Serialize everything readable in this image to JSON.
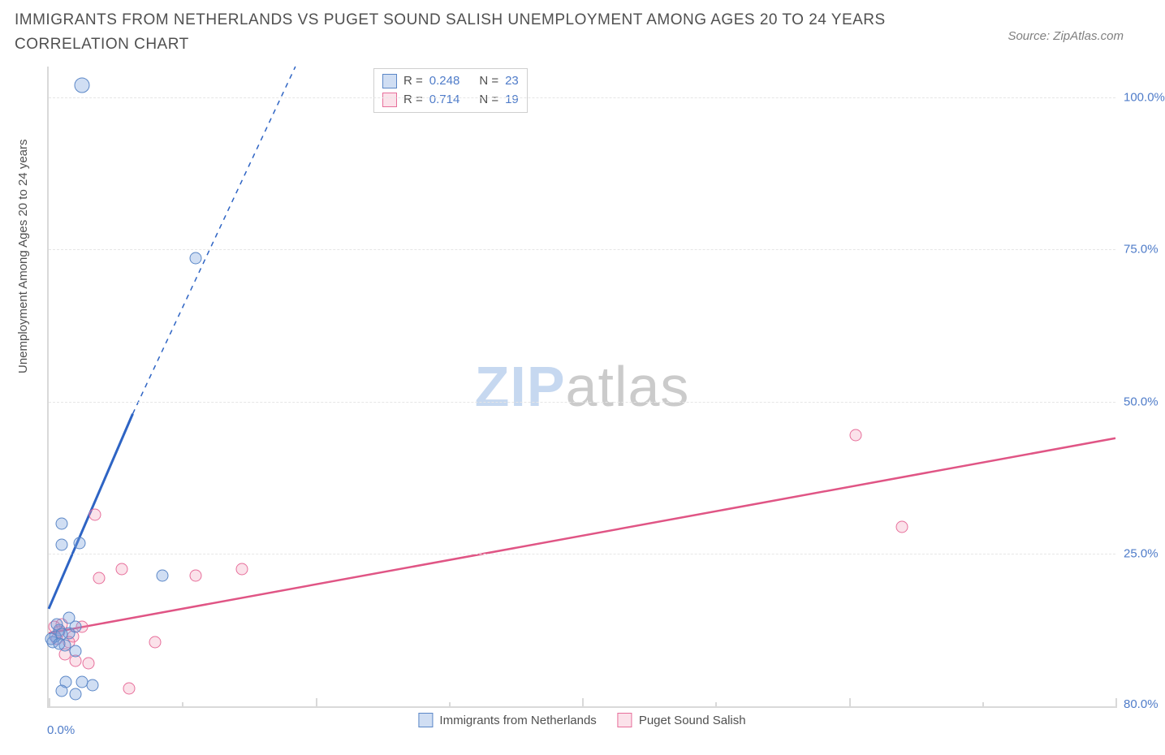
{
  "title": "IMMIGRANTS FROM NETHERLANDS VS PUGET SOUND SALISH UNEMPLOYMENT AMONG AGES 20 TO 24 YEARS CORRELATION CHART",
  "source": "Source: ZipAtlas.com",
  "y_axis_label": "Unemployment Among Ages 20 to 24 years",
  "watermark_a": "ZIP",
  "watermark_b": "atlas",
  "chart": {
    "type": "scatter",
    "xlim": [
      0,
      80
    ],
    "ylim": [
      0,
      105
    ],
    "x_ticks_major": [
      0,
      20,
      40,
      60,
      80
    ],
    "x_ticks_minor": [
      10,
      30,
      50,
      70
    ],
    "x_tick_labels": {
      "0": "0.0%",
      "80": "80.0%"
    },
    "y_ticks": [
      25,
      50,
      75,
      100
    ],
    "y_tick_labels": {
      "25": "25.0%",
      "50": "50.0%",
      "75": "75.0%",
      "100": "100.0%"
    },
    "background_color": "#ffffff",
    "grid_color": "#e6e6e6",
    "axis_color": "#d9d9d9",
    "tick_label_color": "#4f7cc9",
    "point_size": 15,
    "point_size_large": 19
  },
  "series": {
    "blue": {
      "label": "Immigrants from Netherlands",
      "stroke": "#2e64c4",
      "marker_border": "#5b87c7",
      "marker_fill": "rgba(120,160,220,0.35)",
      "R": "0.248",
      "N": "23",
      "trend_solid": {
        "x1": 0,
        "y1": 16,
        "x2": 6.3,
        "y2": 48
      },
      "trend_dash": {
        "x1": 6.3,
        "y1": 48,
        "x2": 18.5,
        "y2": 105
      },
      "points": [
        {
          "x": 2.5,
          "y": 102,
          "size": 19
        },
        {
          "x": 11.0,
          "y": 73.5
        },
        {
          "x": 1.0,
          "y": 26.5
        },
        {
          "x": 2.3,
          "y": 26.8
        },
        {
          "x": 8.5,
          "y": 21.5
        },
        {
          "x": 1.0,
          "y": 30.0
        },
        {
          "x": 0.8,
          "y": 12.5
        },
        {
          "x": 1.5,
          "y": 12.0
        },
        {
          "x": 2.0,
          "y": 13.0
        },
        {
          "x": 0.5,
          "y": 11.5
        },
        {
          "x": 0.3,
          "y": 10.5
        },
        {
          "x": 1.2,
          "y": 10.0
        },
        {
          "x": 2.0,
          "y": 9.0
        },
        {
          "x": 1.3,
          "y": 4.0
        },
        {
          "x": 2.5,
          "y": 4.0
        },
        {
          "x": 3.3,
          "y": 3.5
        },
        {
          "x": 1.0,
          "y": 2.5
        },
        {
          "x": 2.0,
          "y": 2.0
        },
        {
          "x": 1.5,
          "y": 14.5
        },
        {
          "x": 0.6,
          "y": 13.5
        },
        {
          "x": 0.2,
          "y": 11.0
        },
        {
          "x": 1.0,
          "y": 11.8
        },
        {
          "x": 0.8,
          "y": 10.2
        }
      ]
    },
    "pink": {
      "label": "Puget Sound Salish",
      "stroke": "#e05585",
      "marker_border": "#e76f9b",
      "marker_fill": "rgba(240,140,170,0.25)",
      "R": "0.714",
      "N": "19",
      "trend_solid": {
        "x1": 0,
        "y1": 12,
        "x2": 80,
        "y2": 44
      },
      "points": [
        {
          "x": 60.5,
          "y": 44.5
        },
        {
          "x": 64.0,
          "y": 29.5
        },
        {
          "x": 14.5,
          "y": 22.5
        },
        {
          "x": 11.0,
          "y": 21.5
        },
        {
          "x": 5.5,
          "y": 22.5
        },
        {
          "x": 3.5,
          "y": 31.5
        },
        {
          "x": 3.8,
          "y": 21.0
        },
        {
          "x": 8.0,
          "y": 10.5
        },
        {
          "x": 6.0,
          "y": 3.0
        },
        {
          "x": 3.0,
          "y": 7.0
        },
        {
          "x": 2.5,
          "y": 13.0
        },
        {
          "x": 1.8,
          "y": 11.5
        },
        {
          "x": 1.0,
          "y": 13.5
        },
        {
          "x": 2.0,
          "y": 7.5
        },
        {
          "x": 1.2,
          "y": 8.5
        },
        {
          "x": 0.8,
          "y": 12.2
        },
        {
          "x": 0.6,
          "y": 11.0
        },
        {
          "x": 1.5,
          "y": 10.5
        },
        {
          "x": 0.4,
          "y": 13.0
        }
      ]
    }
  },
  "legend_stats": {
    "r_label": "R =",
    "n_label": "N ="
  }
}
